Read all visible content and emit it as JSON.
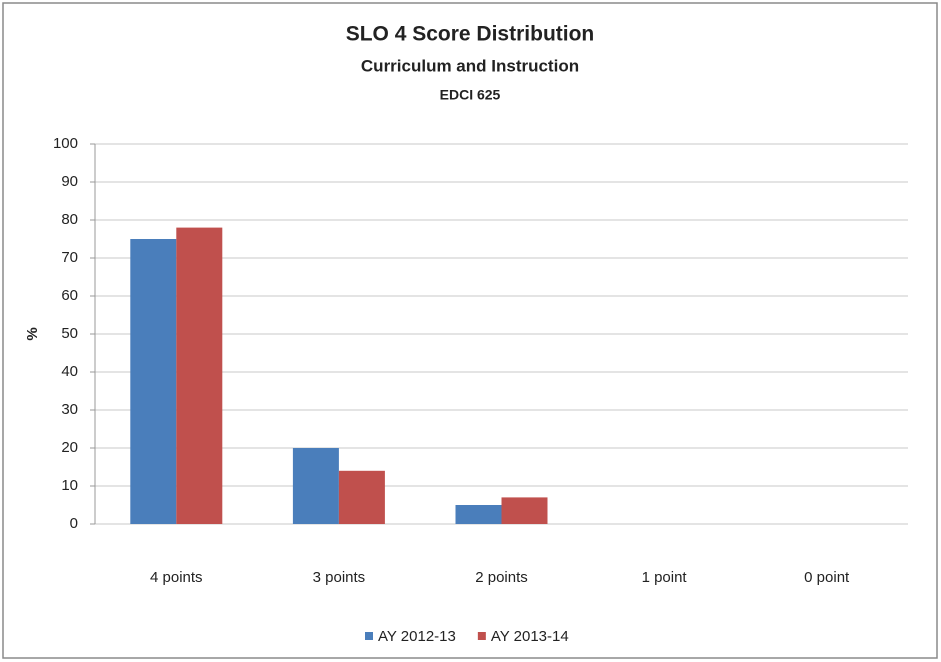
{
  "chart_data": {
    "type": "bar",
    "title": "SLO 4 Score Distribution",
    "subtitle": [
      "Curriculum and Instruction",
      "EDCI 625"
    ],
    "y_label": "%",
    "categories": [
      "4 points",
      "3 points",
      "2 points",
      "1 point",
      "0 point"
    ],
    "series": [
      {
        "name": "AY 2012-13",
        "color": "#4a7ebb",
        "values": [
          75,
          20,
          5,
          0,
          0
        ]
      },
      {
        "name": "AY 2013-14",
        "color": "#c0504d",
        "values": [
          78,
          14,
          7,
          0,
          0
        ]
      }
    ],
    "ylim": [
      0,
      100
    ],
    "yticks": [
      0,
      10,
      20,
      30,
      40,
      50,
      60,
      70,
      80,
      90,
      100
    ],
    "grid": true,
    "legend": "bottom"
  }
}
